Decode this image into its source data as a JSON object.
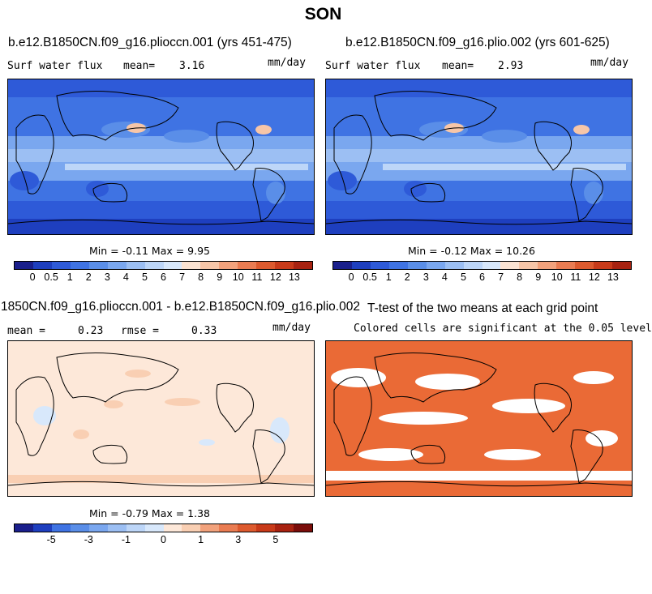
{
  "title": "SON",
  "panels": [
    {
      "title": "b.e12.B1850CN.f09_g16.plioccn.001 (yrs 451-475)",
      "left_label": "Surf water flux",
      "stat_label": "mean=",
      "stat_value": "3.16",
      "units": "mm/day",
      "min_max": "Min =  -0.11 Max =   9.95"
    },
    {
      "title": "b.e12.B1850CN.f09_g16.plio.002 (yrs 601-625)",
      "left_label": "Surf water flux",
      "stat_label": "mean=",
      "stat_value": "2.93",
      "units": "mm/day",
      "min_max": "Min =  -0.12 Max =  10.26"
    },
    {
      "title": "1850CN.f09_g16.plioccn.001 - b.e12.B1850CN.f09_g16.plio.002",
      "mean_label": "mean =",
      "mean_value": "0.23",
      "rmse_label": "rmse =",
      "rmse_value": "0.33",
      "units": "mm/day",
      "min_max": "Min =  -0.79 Max =   1.38"
    },
    {
      "title": "T-test of the two means at each grid point",
      "subtitle": "Colored cells are significant at the 0.05 level"
    }
  ],
  "colorbar_abs": {
    "colors": [
      "#1a1f8c",
      "#1e3fbf",
      "#2e5ad8",
      "#3f73e3",
      "#5a8ee8",
      "#7aa7ef",
      "#9cbff3",
      "#bdd6f8",
      "#d8e8fb",
      "#fbe3d2",
      "#f7c6a8",
      "#f2a27c",
      "#ea7c52",
      "#dd5a2e",
      "#c83a19",
      "#a82210",
      "#7a0d0a"
    ],
    "labels": [
      "0",
      "0.5",
      "1",
      "2",
      "3",
      "4",
      "5",
      "6",
      "7",
      "8",
      "9",
      "10",
      "11",
      "12",
      "13"
    ]
  },
  "colorbar_diff": {
    "colors": [
      "#1a1f8c",
      "#1e3fbf",
      "#3f73e3",
      "#5a8ee8",
      "#7aa7ef",
      "#9cbff3",
      "#bdd6f8",
      "#d8e8fb",
      "#fde8d9",
      "#f9cfb3",
      "#f2a27c",
      "#ea7c52",
      "#dd5a2e",
      "#c83a19",
      "#a82210",
      "#7a0d0a"
    ],
    "labels": [
      "-5",
      "-3",
      "-1",
      "0",
      "1",
      "3",
      "5"
    ]
  }
}
